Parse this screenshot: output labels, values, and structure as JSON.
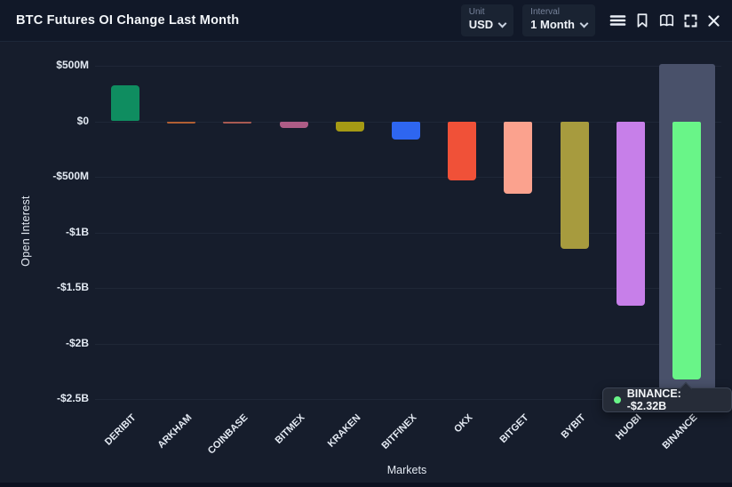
{
  "header": {
    "title": "BTC Futures OI Change Last Month"
  },
  "controls": {
    "unit": {
      "label": "Unit",
      "value": "USD"
    },
    "interval": {
      "label": "Interval",
      "value": "1 Month"
    }
  },
  "icons": [
    "menu-icon",
    "bookmark-icon",
    "book-icon",
    "fullscreen-icon",
    "close-icon"
  ],
  "chart_data": {
    "type": "bar",
    "title": "BTC Futures OI Change Last Month",
    "xlabel": "Markets",
    "ylabel": "Open Interest",
    "categories": [
      "DERIBIT",
      "ARKHAM",
      "COINBASE",
      "BITMEX",
      "KRAKEN",
      "BITFINEX",
      "OKX",
      "BITGET",
      "BYBIT",
      "HUOBI",
      "BINANCE"
    ],
    "values_usd_millions": [
      325,
      -15,
      -15,
      -60,
      -95,
      -160,
      -530,
      -650,
      -1150,
      -1660,
      -2320
    ],
    "bar_colors": [
      "#0f8d60",
      "#b15f33",
      "#a85a52",
      "#ad5c86",
      "#a59a14",
      "#2e66f0",
      "#f05138",
      "#fba28e",
      "#a79b3e",
      "#c77fe9",
      "#69f588"
    ],
    "y_ticks": [
      "$500M",
      "$0",
      "-$500M",
      "-$1B",
      "-$1.5B",
      "-$2B",
      "-$2.5B"
    ],
    "y_tick_values": [
      500,
      0,
      -500,
      -1000,
      -1500,
      -2000,
      -2500
    ],
    "ylim": [
      -2500,
      500
    ],
    "grid": true,
    "legend": false,
    "unit": "USD",
    "highlighted_category": "BINANCE"
  },
  "tooltip": {
    "text": "BINANCE: -$2.32B",
    "dot_color": "#69f588"
  }
}
